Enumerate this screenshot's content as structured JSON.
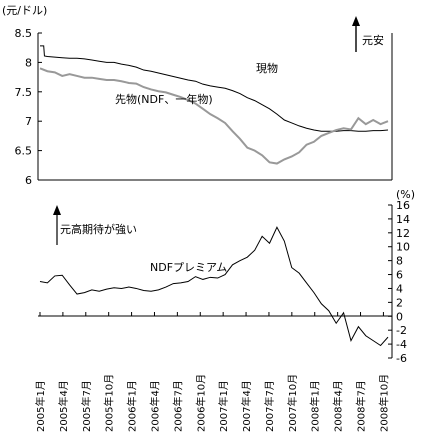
{
  "chart_data": [
    {
      "type": "line",
      "unit_label": "(元/ドル)",
      "ylim": [
        6,
        8.5
      ],
      "yticks": [
        "8.5",
        "8",
        "7.5",
        "7",
        "6.5",
        "6"
      ],
      "annotation_arrow": "元安",
      "series": [
        {
          "name": "現物",
          "color": "#000000",
          "x": [
            0,
            0.2,
            0.5,
            0.6,
            1,
            2,
            3,
            4,
            5,
            6,
            7,
            8,
            9,
            10,
            11,
            12,
            13,
            14,
            15,
            16,
            17,
            18,
            19,
            20,
            21,
            22,
            23,
            24,
            25,
            26,
            27,
            28,
            29,
            30,
            31,
            32,
            33,
            34,
            35,
            36,
            37,
            38,
            39,
            40,
            41,
            42,
            43,
            44,
            45,
            46,
            47
          ],
          "values": [
            8.28,
            8.28,
            8.28,
            8.11,
            8.1,
            8.09,
            8.08,
            8.07,
            8.07,
            8.06,
            8.04,
            8.02,
            8.0,
            8.0,
            7.97,
            7.95,
            7.92,
            7.87,
            7.85,
            7.82,
            7.79,
            7.76,
            7.73,
            7.7,
            7.68,
            7.63,
            7.6,
            7.58,
            7.56,
            7.52,
            7.47,
            7.4,
            7.35,
            7.28,
            7.21,
            7.12,
            7.02,
            6.97,
            6.92,
            6.88,
            6.85,
            6.83,
            6.83,
            6.83,
            6.84,
            6.84,
            6.83,
            6.83,
            6.84,
            6.84,
            6.85
          ]
        },
        {
          "name": "先物(NDF、一年物)",
          "color": "#999999",
          "x": [
            0,
            1,
            2,
            3,
            4,
            5,
            6,
            7,
            8,
            9,
            10,
            11,
            12,
            13,
            14,
            15,
            16,
            17,
            18,
            19,
            20,
            21,
            22,
            23,
            24,
            25,
            26,
            27,
            28,
            29,
            30,
            31,
            32,
            33,
            34,
            35,
            36,
            37,
            38,
            39,
            40,
            41,
            42,
            43,
            44,
            45,
            46,
            47
          ],
          "values": [
            7.9,
            7.85,
            7.83,
            7.77,
            7.8,
            7.77,
            7.74,
            7.74,
            7.72,
            7.7,
            7.7,
            7.68,
            7.65,
            7.64,
            7.58,
            7.54,
            7.51,
            7.49,
            7.45,
            7.41,
            7.36,
            7.3,
            7.21,
            7.12,
            7.05,
            6.97,
            6.83,
            6.7,
            6.55,
            6.5,
            6.42,
            6.3,
            6.28,
            6.35,
            6.4,
            6.47,
            6.6,
            6.65,
            6.75,
            6.8,
            6.85,
            6.88,
            6.86,
            7.05,
            6.95,
            7.02,
            6.95,
            7.0
          ]
        }
      ]
    },
    {
      "type": "line",
      "unit_label": "(%)",
      "ylim": [
        -6,
        16
      ],
      "yticks": [
        "16",
        "14",
        "12",
        "10",
        "8",
        "6",
        "4",
        "2",
        "0",
        "-2",
        "-4",
        "-6"
      ],
      "annotation_arrow": "元高期待が強い",
      "series": [
        {
          "name": "NDFプレミアム",
          "color": "#000000",
          "x": [
            0,
            1,
            2,
            3,
            4,
            5,
            6,
            7,
            8,
            9,
            10,
            11,
            12,
            13,
            14,
            15,
            16,
            17,
            18,
            19,
            20,
            21,
            22,
            23,
            24,
            25,
            26,
            27,
            28,
            29,
            30,
            31,
            32,
            33,
            34,
            35,
            36,
            37,
            38,
            39,
            40,
            41,
            42,
            43,
            44,
            45,
            46,
            47
          ],
          "values": [
            5.0,
            4.8,
            5.8,
            5.9,
            4.5,
            3.2,
            3.4,
            3.8,
            3.6,
            3.9,
            4.1,
            4.0,
            4.2,
            4.0,
            3.7,
            3.6,
            3.8,
            4.2,
            4.7,
            4.8,
            5.0,
            5.7,
            5.3,
            5.6,
            5.5,
            6.0,
            7.4,
            8.0,
            8.5,
            9.5,
            11.5,
            10.5,
            12.8,
            10.8,
            7.0,
            6.2,
            4.8,
            3.4,
            1.8,
            0.8,
            -1.0,
            0.5,
            -3.5,
            -1.5,
            -2.8,
            -3.5,
            -4.2,
            -3.0
          ]
        }
      ]
    }
  ],
  "x_tick_labels": [
    "2005年1月",
    "2005年4月",
    "2005年7月",
    "2005年10月",
    "2006年1月",
    "2006年4月",
    "2006年7月",
    "2006年10月",
    "2007年1月",
    "2007年4月",
    "2007年7月",
    "2007年10月",
    "2008年1月",
    "2008年4月",
    "2008年7月",
    "2008年10月"
  ]
}
